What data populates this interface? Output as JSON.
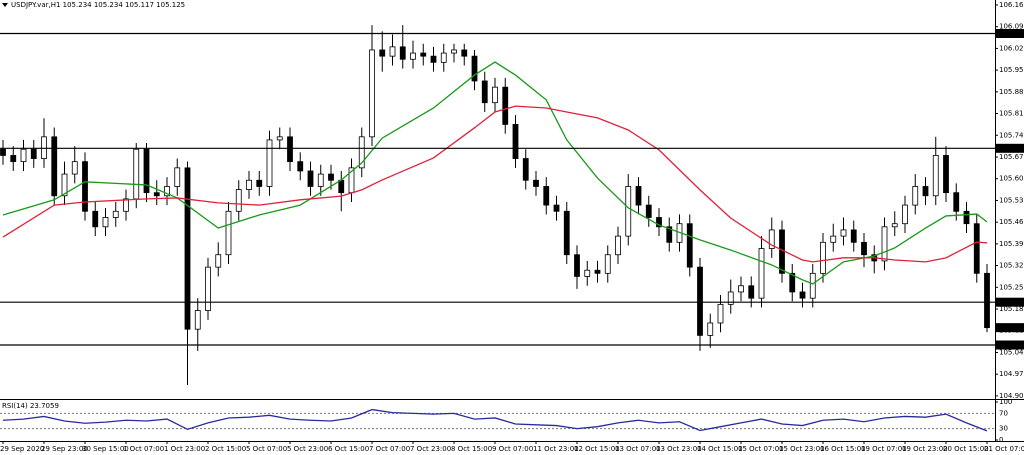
{
  "chart_data": {
    "type": "candlestick",
    "title": "USDJPY.var,H1 105.234 105.234 105.117 105.125",
    "categories": [
      "29 Sep 2020",
      null,
      null,
      null,
      "29 Sep 23:00",
      null,
      null,
      null,
      "30 Sep 15:00",
      null,
      null,
      null,
      "1 Oct 07:00",
      null,
      null,
      null,
      "1 Oct 23:00",
      null,
      null,
      null,
      "2 Oct 15:00",
      null,
      null,
      null,
      "5 Oct 07:00",
      null,
      null,
      null,
      "5 Oct 23:00",
      null,
      null,
      null,
      "6 Oct 15:00",
      null,
      null,
      null,
      "7 Oct 07:00",
      null,
      null,
      null,
      "7 Oct 23:00",
      null,
      null,
      null,
      "8 Oct 15:00",
      null,
      null,
      null,
      "9 Oct 07:00",
      null,
      null,
      null,
      "11 Oct 23:00",
      null,
      null,
      null,
      "12 Oct 15:00",
      null,
      null,
      null,
      "13 Oct 07:00",
      null,
      null,
      null,
      "13 Oct 23:00",
      null,
      null,
      null,
      "14 Oct 15:00",
      null,
      null,
      null,
      "15 Oct 07:00",
      null,
      null,
      null,
      "15 Oct 23:00",
      null,
      null,
      null,
      "16 Oct 15:00",
      null,
      null,
      null,
      "19 Oct 07:00",
      null,
      null,
      null,
      "19 Oct 23:00",
      null,
      null,
      null,
      "20 Oct 15:00",
      null,
      null,
      null,
      "21 Oct 07:00"
    ],
    "open": [
      105.7,
      105.68,
      105.66,
      105.7,
      105.67,
      105.74,
      105.55,
      105.62,
      105.66,
      105.5,
      105.45,
      105.48,
      105.5,
      105.54,
      105.7,
      105.56,
      105.55,
      105.58,
      105.64,
      105.12,
      105.18,
      105.32,
      105.36,
      105.5,
      105.57,
      105.6,
      105.58,
      105.73,
      105.74,
      105.66,
      105.63,
      105.58,
      105.62,
      105.6,
      105.56,
      105.64,
      105.74,
      106.02,
      106.0,
      106.03,
      105.99,
      106.01,
      106.0,
      105.98,
      106.01,
      106.02,
      106.0,
      105.92,
      105.85,
      105.9,
      105.78,
      105.67,
      105.6,
      105.58,
      105.52,
      105.5,
      105.36,
      105.29,
      105.31,
      105.3,
      105.36,
      105.42,
      105.58,
      105.52,
      105.48,
      105.45,
      105.4,
      105.46,
      105.32,
      105.1,
      105.14,
      105.2,
      105.24,
      105.26,
      105.22,
      105.38,
      105.44,
      105.3,
      105.24,
      105.22,
      105.3,
      105.4,
      105.42,
      105.44,
      105.4,
      105.36,
      105.34,
      105.45,
      105.46,
      105.52,
      105.58,
      105.55,
      105.68,
      105.56,
      105.5,
      105.46,
      105.3
    ],
    "high": [
      105.73,
      105.71,
      105.73,
      105.73,
      105.8,
      105.77,
      105.66,
      105.71,
      105.69,
      105.53,
      105.51,
      105.53,
      105.57,
      105.72,
      105.72,
      105.6,
      105.61,
      105.67,
      105.66,
      105.22,
      105.35,
      105.4,
      105.53,
      105.6,
      105.63,
      105.63,
      105.76,
      105.77,
      105.77,
      105.69,
      105.66,
      105.65,
      105.65,
      105.63,
      105.67,
      105.77,
      106.1,
      106.08,
      106.07,
      106.1,
      106.05,
      106.04,
      106.03,
      106.04,
      106.04,
      106.04,
      106.02,
      105.95,
      105.93,
      105.93,
      105.81,
      105.7,
      105.63,
      105.61,
      105.55,
      105.53,
      105.39,
      105.34,
      105.34,
      105.39,
      105.45,
      105.62,
      105.61,
      105.55,
      105.51,
      105.48,
      105.49,
      105.49,
      105.35,
      105.17,
      105.23,
      105.28,
      105.29,
      105.29,
      105.42,
      105.48,
      105.47,
      105.33,
      105.27,
      105.33,
      105.43,
      105.46,
      105.48,
      105.47,
      105.43,
      105.39,
      105.48,
      105.5,
      105.55,
      105.62,
      105.61,
      105.74,
      105.71,
      105.59,
      105.53,
      105.49,
      105.33
    ],
    "low": [
      105.65,
      105.63,
      105.63,
      105.64,
      105.64,
      105.52,
      105.52,
      105.59,
      105.47,
      105.42,
      105.42,
      105.45,
      105.47,
      105.51,
      105.53,
      105.52,
      105.52,
      105.55,
      104.94,
      105.05,
      105.15,
      105.29,
      105.33,
      105.47,
      105.54,
      105.55,
      105.55,
      105.7,
      105.63,
      105.6,
      105.55,
      105.55,
      105.57,
      105.5,
      105.53,
      105.61,
      105.71,
      105.95,
      105.97,
      105.96,
      105.96,
      105.97,
      105.95,
      105.95,
      105.98,
      105.97,
      105.89,
      105.82,
      105.82,
      105.75,
      105.64,
      105.57,
      105.55,
      105.49,
      105.47,
      105.33,
      105.25,
      105.26,
      105.27,
      105.27,
      105.33,
      105.39,
      105.49,
      105.45,
      105.42,
      105.37,
      105.37,
      105.29,
      105.05,
      105.06,
      105.11,
      105.17,
      105.21,
      105.19,
      105.19,
      105.35,
      105.27,
      105.21,
      105.19,
      105.19,
      105.27,
      105.37,
      105.39,
      105.37,
      105.32,
      105.3,
      105.31,
      105.42,
      105.43,
      105.49,
      105.52,
      105.52,
      105.53,
      105.47,
      105.43,
      105.27,
      105.11
    ],
    "close": [
      105.68,
      105.66,
      105.7,
      105.67,
      105.74,
      105.55,
      105.62,
      105.66,
      105.5,
      105.45,
      105.48,
      105.5,
      105.54,
      105.7,
      105.56,
      105.55,
      105.58,
      105.64,
      105.12,
      105.18,
      105.32,
      105.36,
      105.5,
      105.57,
      105.6,
      105.58,
      105.73,
      105.74,
      105.66,
      105.63,
      105.58,
      105.62,
      105.6,
      105.56,
      105.64,
      105.74,
      106.02,
      106.0,
      106.03,
      105.99,
      106.01,
      106.0,
      105.98,
      106.01,
      106.02,
      106.0,
      105.92,
      105.85,
      105.9,
      105.78,
      105.67,
      105.6,
      105.58,
      105.52,
      105.5,
      105.36,
      105.29,
      105.31,
      105.3,
      105.36,
      105.42,
      105.58,
      105.52,
      105.48,
      105.45,
      105.4,
      105.46,
      105.32,
      105.1,
      105.14,
      105.2,
      105.24,
      105.26,
      105.22,
      105.38,
      105.44,
      105.3,
      105.24,
      105.22,
      105.3,
      105.4,
      105.42,
      105.44,
      105.4,
      105.36,
      105.34,
      105.45,
      105.46,
      105.52,
      105.58,
      105.55,
      105.68,
      105.56,
      105.5,
      105.46,
      105.3,
      105.125
    ],
    "color_up": "#ffffff",
    "color_down": "#000000",
    "ylim": [
      104.895,
      106.181
    ],
    "yticks": [
      104.905,
      104.975,
      105.045,
      105.115,
      105.185,
      105.255,
      105.325,
      105.395,
      105.465,
      105.535,
      105.605,
      105.675,
      105.745,
      105.815,
      105.885,
      105.955,
      106.025,
      106.095,
      106.165
    ],
    "levels": [
      106.073,
      105.703,
      105.207,
      105.069
    ],
    "last_price": 105.125,
    "overlays": [
      {
        "color": "#1a9a1a",
        "x": [
          0,
          5,
          8,
          14,
          17,
          21,
          25,
          29,
          33,
          35,
          37,
          42,
          46,
          48,
          50,
          53,
          55,
          58,
          61,
          64,
          68,
          71,
          75,
          78,
          79,
          82,
          85,
          87,
          90,
          92,
          95,
          96
        ],
        "values": [
          105.488,
          105.537,
          105.595,
          105.585,
          105.543,
          105.446,
          105.488,
          105.52,
          105.601,
          105.656,
          105.736,
          105.833,
          105.939,
          105.981,
          105.939,
          105.859,
          105.73,
          105.607,
          105.511,
          105.456,
          105.408,
          105.375,
          105.327,
          105.279,
          105.266,
          105.337,
          105.356,
          105.382,
          105.446,
          105.485,
          105.491,
          105.466
        ]
      },
      {
        "color": "#e0203a",
        "x": [
          0,
          5,
          8,
          14,
          17,
          21,
          25,
          29,
          33,
          35,
          37,
          42,
          46,
          48,
          50,
          53,
          55,
          58,
          61,
          64,
          68,
          71,
          75,
          78,
          79,
          82,
          85,
          87,
          90,
          92,
          95,
          96
        ],
        "values": [
          105.417,
          105.52,
          105.53,
          105.54,
          105.543,
          105.527,
          105.52,
          105.537,
          105.549,
          105.569,
          105.601,
          105.672,
          105.769,
          105.82,
          105.839,
          105.833,
          105.82,
          105.801,
          105.762,
          105.698,
          105.569,
          105.478,
          105.391,
          105.343,
          105.337,
          105.35,
          105.35,
          105.343,
          105.337,
          105.35,
          105.401,
          105.398
        ]
      }
    ],
    "indicator": {
      "title": "RSI(14) 23.7059",
      "color": "#2a2aa0",
      "ylim": [
        0,
        100
      ],
      "yticks": [
        0,
        30,
        70,
        100
      ],
      "x": [
        0,
        2,
        4,
        6,
        8,
        10,
        12,
        14,
        16,
        18,
        20,
        22,
        24,
        26,
        28,
        30,
        32,
        34,
        36,
        38,
        40,
        42,
        44,
        46,
        48,
        50,
        52,
        54,
        56,
        58,
        60,
        62,
        64,
        66,
        68,
        70,
        72,
        74,
        76,
        78,
        80,
        82,
        84,
        86,
        88,
        90,
        92,
        94,
        96
      ],
      "values": [
        52,
        55,
        62,
        50,
        44,
        47,
        52,
        50,
        55,
        28,
        45,
        58,
        60,
        65,
        55,
        52,
        50,
        58,
        80,
        72,
        70,
        68,
        70,
        55,
        58,
        42,
        40,
        38,
        30,
        35,
        45,
        52,
        45,
        48,
        25,
        35,
        45,
        55,
        42,
        38,
        52,
        55,
        48,
        58,
        62,
        60,
        68,
        45,
        24
      ]
    }
  }
}
